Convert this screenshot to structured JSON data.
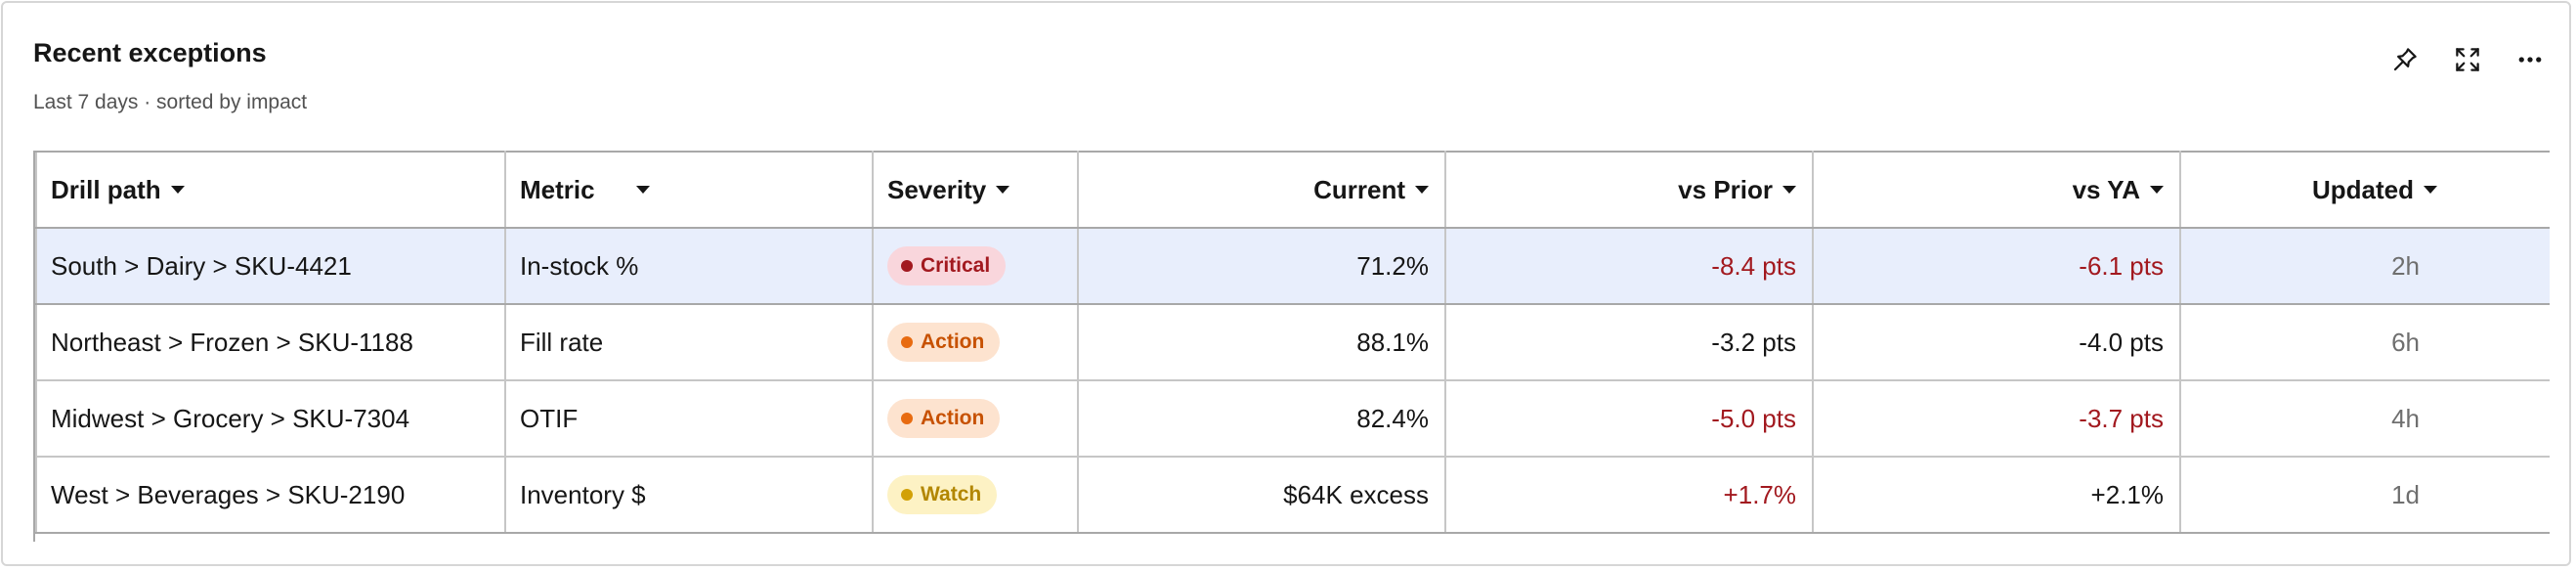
{
  "header": {
    "title": "Recent exceptions",
    "subtitle": "Last 7 days · sorted by impact"
  },
  "toolbar": {
    "icons": [
      "pin-icon",
      "expand-icon",
      "more-icon"
    ]
  },
  "table": {
    "columns": [
      "Drill path",
      "Metric",
      "Severity",
      "Current",
      "vs Prior",
      "vs YA",
      "Updated"
    ],
    "rows": [
      {
        "drill_path": "South > Dairy > SKU-4421",
        "metric": "In-stock %",
        "severity": "Critical",
        "current": "71.2%",
        "vs_prior": "-8.4 pts",
        "vs_ya": "-6.1 pts",
        "updated": "2h"
      },
      {
        "drill_path": "Northeast > Frozen > SKU-1188",
        "metric": "Fill rate",
        "severity": "Action",
        "current": "88.1%",
        "vs_prior": "-3.2 pts",
        "vs_ya": "-4.0 pts",
        "updated": "6h"
      },
      {
        "drill_path": "Midwest > Grocery > SKU-7304",
        "metric": "OTIF",
        "severity": "Action",
        "current": "82.4%",
        "vs_prior": "-5.0 pts",
        "vs_ya": "-3.7 pts",
        "updated": "4h"
      },
      {
        "drill_path": "West > Beverages > SKU-2190",
        "metric": "Inventory $",
        "severity": "Watch",
        "current": "$64K excess",
        "vs_prior": "+1.7%",
        "vs_ya": "+2.1%",
        "updated": "1d"
      }
    ]
  },
  "colors": {
    "critical": "#a2191f",
    "action": "#e86b10",
    "watch": "#d2a106",
    "selected_row": "#e8eefc",
    "negative_text": "#a2191f"
  }
}
